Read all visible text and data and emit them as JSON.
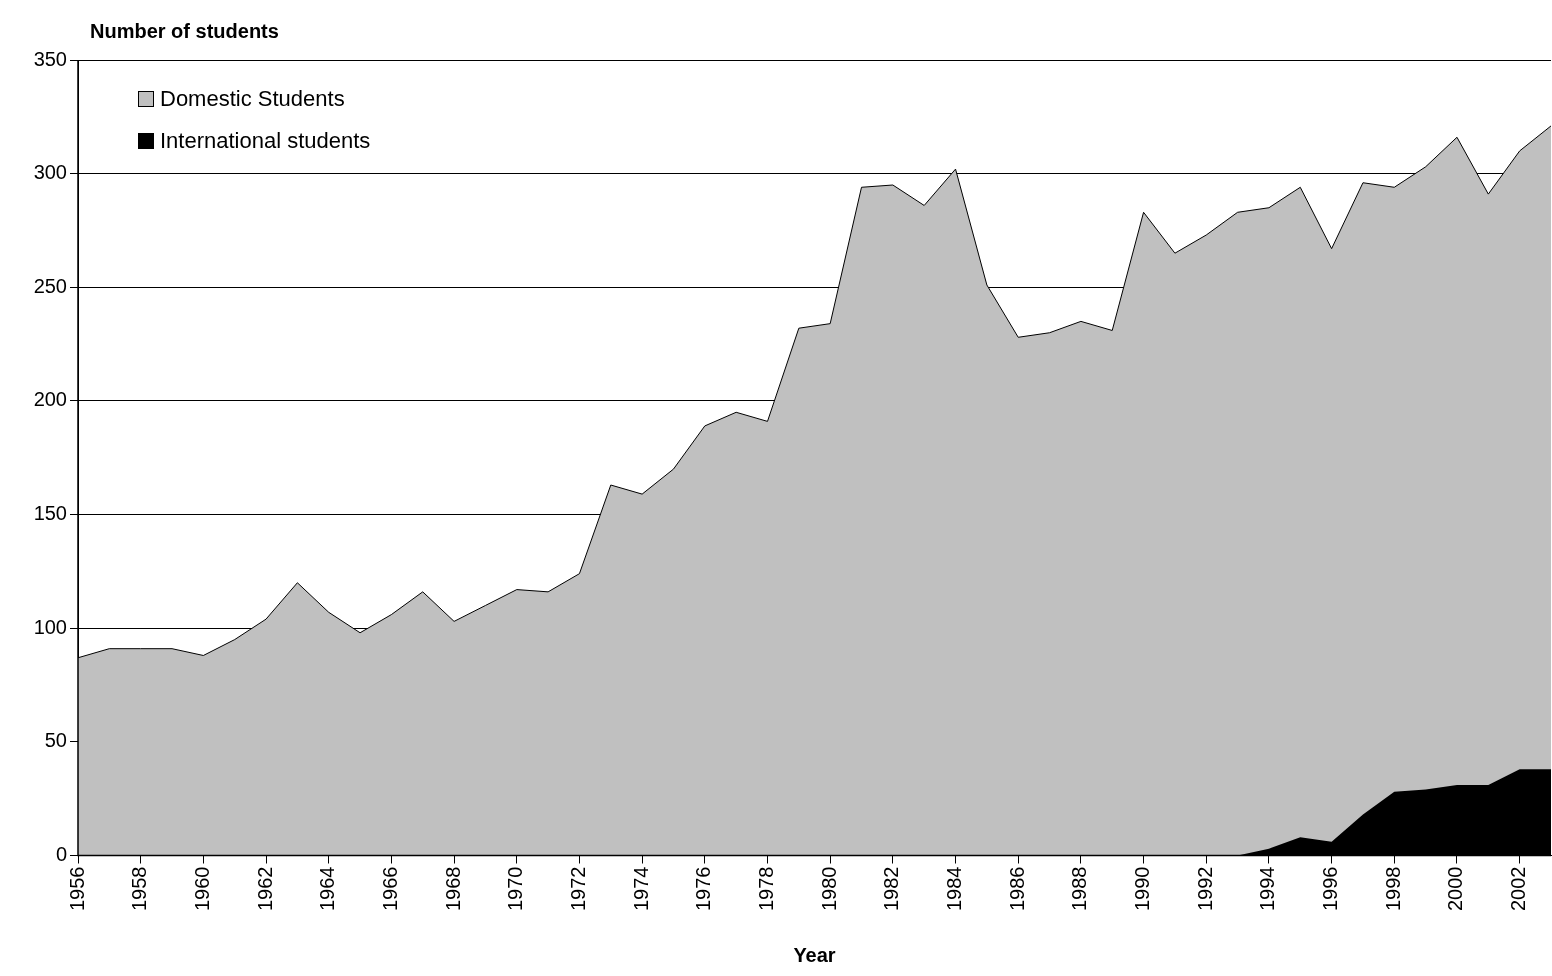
{
  "chart_data": {
    "type": "area",
    "xlabel": "Year",
    "ylabel": "Number of students",
    "x": [
      1956,
      1957,
      1958,
      1959,
      1960,
      1961,
      1962,
      1963,
      1964,
      1965,
      1966,
      1967,
      1968,
      1969,
      1970,
      1971,
      1972,
      1973,
      1974,
      1975,
      1976,
      1977,
      1978,
      1979,
      1980,
      1981,
      1982,
      1983,
      1984,
      1985,
      1986,
      1987,
      1988,
      1989,
      1990,
      1991,
      1992,
      1993,
      1994,
      1995,
      1996,
      1997,
      1998,
      1999,
      2000,
      2001,
      2002,
      2003
    ],
    "series": [
      {
        "name": "Domestic Students",
        "color": "#c0c0c0",
        "values": [
          87,
          91,
          91,
          91,
          88,
          95,
          104,
          120,
          107,
          98,
          106,
          116,
          103,
          110,
          117,
          116,
          124,
          163,
          159,
          170,
          189,
          195,
          191,
          232,
          234,
          294,
          295,
          286,
          302,
          251,
          228,
          230,
          235,
          231,
          283,
          265,
          273,
          283,
          285,
          294,
          267,
          296,
          294,
          303,
          316,
          291,
          310,
          321
        ]
      },
      {
        "name": "International students",
        "color": "#000000",
        "values": [
          0,
          0,
          0,
          0,
          0,
          0,
          0,
          0,
          0,
          0,
          0,
          0,
          0,
          0,
          0,
          0,
          0,
          0,
          0,
          0,
          0,
          0,
          0,
          0,
          0,
          0,
          0,
          0,
          0,
          0,
          0,
          0,
          0,
          0,
          0,
          0,
          0,
          0,
          3,
          8,
          6,
          18,
          28,
          29,
          31,
          31,
          38,
          38
        ]
      }
    ],
    "xlim": [
      1956,
      2003
    ],
    "xticks": [
      1956,
      1958,
      1960,
      1962,
      1964,
      1966,
      1968,
      1970,
      1972,
      1974,
      1976,
      1978,
      1980,
      1982,
      1984,
      1986,
      1988,
      1990,
      1992,
      1994,
      1996,
      1998,
      2000,
      2002
    ],
    "ylim": [
      0,
      350
    ],
    "yticks": [
      0,
      50,
      100,
      150,
      200,
      250,
      300,
      350
    ],
    "grid": "y",
    "legend": "top left"
  }
}
